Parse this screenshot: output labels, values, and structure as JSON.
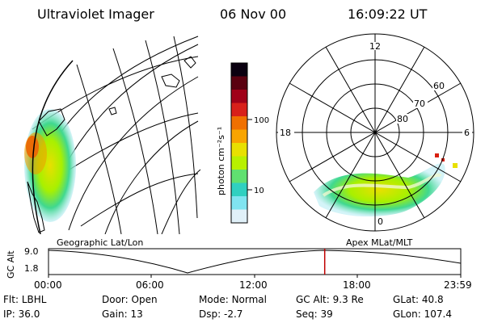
{
  "header": {
    "instrument": "Ultraviolet Imager",
    "date": "06 Nov 00",
    "time": "16:09:22 UT"
  },
  "colorbar": {
    "unit_label": "photon cm⁻²s⁻¹",
    "ticks": [
      "100",
      "10"
    ],
    "colors": [
      "#0a0010",
      "#5a0010",
      "#a00018",
      "#d8201a",
      "#f07000",
      "#f8a400",
      "#e8e000",
      "#b8f000",
      "#60e070",
      "#30d0c0",
      "#80e4f0",
      "#e0f0f8"
    ]
  },
  "polar": {
    "lat_labels": [
      "60",
      "70",
      "80"
    ],
    "mlt_labels": {
      "top": "12",
      "left": "18",
      "right": "6",
      "bottom": "0"
    }
  },
  "timeline": {
    "left_title": "Geographic Lat/Lon",
    "right_title": "Apex MLat/MLT",
    "axis_label": "GC Alt",
    "y_ticks": [
      "9.0",
      "1.8"
    ],
    "x_ticks": [
      "00:00",
      "06:00",
      "12:00",
      "18:00",
      "23:59"
    ],
    "current_time_fraction": 0.67
  },
  "status": {
    "row1": [
      {
        "label": "Flt:",
        "value": "LBHL"
      },
      {
        "label": "Door:",
        "value": "Open"
      },
      {
        "label": "Mode:",
        "value": "Normal"
      },
      {
        "label": "GC Alt:",
        "value": "9.3 Re"
      },
      {
        "label": "GLat:",
        "value": "40.8"
      }
    ],
    "row2": [
      {
        "label": "IP:",
        "value": "36.0"
      },
      {
        "label": "Gain:",
        "value": "13"
      },
      {
        "label": "Dsp:",
        "value": "-2.7"
      },
      {
        "label": "Seq:",
        "value": "39"
      },
      {
        "label": "GLon:",
        "value": "107.4"
      }
    ]
  }
}
